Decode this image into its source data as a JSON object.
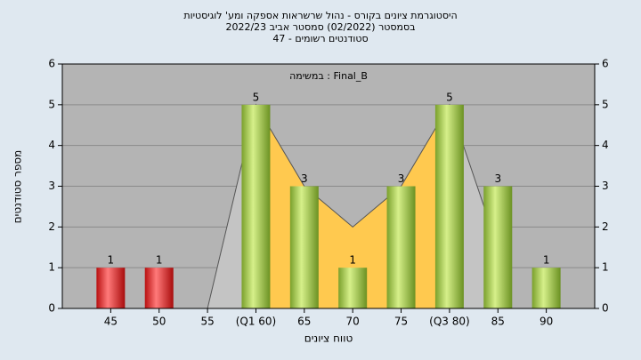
{
  "chart_data": {
    "type": "bar",
    "title": [
      "היסטוגרמת ציונים בקורס - נהול שרשראות אספקה ומע' לוגיסטיות",
      "בסמסטר (02/2022) סמסטר אביב 2022/23",
      "סטודנטים רשומים - 47"
    ],
    "annotation": "במשימה : Final_B",
    "xlabel": "טווח ציונים",
    "ylabel": "מספר סטודנטים",
    "categories": [
      "45",
      "50",
      "55",
      "(Q1 60)",
      "65",
      "70",
      "75",
      "(Q3 80)",
      "85",
      "90"
    ],
    "values": [
      1,
      1,
      0,
      5,
      3,
      1,
      3,
      5,
      3,
      1
    ],
    "colors": [
      "red",
      "red",
      "green",
      "green",
      "green",
      "green",
      "green",
      "green",
      "green",
      "green"
    ],
    "shape": [
      null,
      null,
      0,
      5,
      3,
      2,
      3,
      5,
      1.5,
      null
    ],
    "shape_color": "#c4c4c4",
    "band": [
      3,
      7
    ],
    "band_color": "#ffc94f",
    "ylim": [
      0,
      6
    ],
    "yticks": [
      0,
      1,
      2,
      3,
      4,
      5,
      6
    ],
    "grid": true
  }
}
